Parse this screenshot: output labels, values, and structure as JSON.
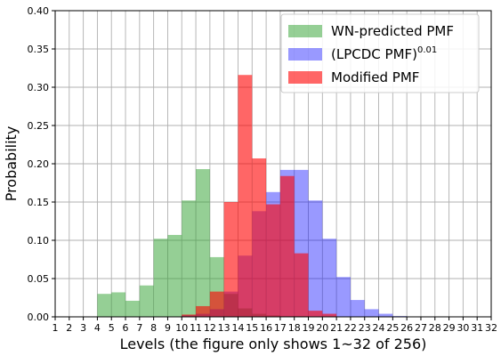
{
  "chart_data": {
    "type": "bar",
    "title": "",
    "xlabel": "Levels (the figure only shows 1~32 of 256)",
    "ylabel": "Probability",
    "x_ticks": [
      "1",
      "2",
      "3",
      "4",
      "5",
      "6",
      "7",
      "8",
      "9",
      "10",
      "11",
      "12",
      "13",
      "14",
      "15",
      "16",
      "17",
      "18",
      "19",
      "20",
      "21",
      "22",
      "23",
      "24",
      "25",
      "26",
      "27",
      "28",
      "29",
      "30",
      "31",
      "32"
    ],
    "xlim": [
      1,
      32
    ],
    "ylim": [
      0,
      0.4
    ],
    "y_ticks": [
      "0.00",
      "0.05",
      "0.10",
      "0.15",
      "0.20",
      "0.25",
      "0.30",
      "0.35",
      "0.40"
    ],
    "grid": true,
    "legend_position": "top-right",
    "series": [
      {
        "name": "WN-predicted PMF",
        "color": "#2ca02c",
        "opacity": 0.5,
        "x": [
          4,
          5,
          6,
          7,
          8,
          9,
          10,
          11,
          12,
          13,
          14,
          15,
          16,
          17,
          18,
          19,
          20
        ],
        "values": [
          0.03,
          0.032,
          0.021,
          0.041,
          0.102,
          0.107,
          0.152,
          0.193,
          0.078,
          0.03,
          0.011,
          0.004,
          0.002,
          0.001,
          0.001,
          0.0005,
          0.0003
        ]
      },
      {
        "name_main": "(LPCDC PMF)",
        "name_sup": "0.01",
        "color": "#0000ff",
        "opacity": 0.4,
        "x": [
          10,
          11,
          12,
          13,
          14,
          15,
          16,
          17,
          18,
          19,
          20,
          21,
          22,
          23,
          24,
          25
        ],
        "values": [
          0.002,
          0.004,
          0.01,
          0.033,
          0.08,
          0.138,
          0.163,
          0.192,
          0.192,
          0.152,
          0.102,
          0.052,
          0.022,
          0.01,
          0.004,
          0.001
        ]
      },
      {
        "name": "Modified PMF",
        "color": "#ff0000",
        "opacity": 0.6,
        "x": [
          10,
          11,
          12,
          13,
          14,
          15,
          16,
          17,
          18,
          19,
          20
        ],
        "values": [
          0.003,
          0.014,
          0.033,
          0.15,
          0.316,
          0.207,
          0.147,
          0.184,
          0.083,
          0.008,
          0.004
        ]
      }
    ]
  }
}
